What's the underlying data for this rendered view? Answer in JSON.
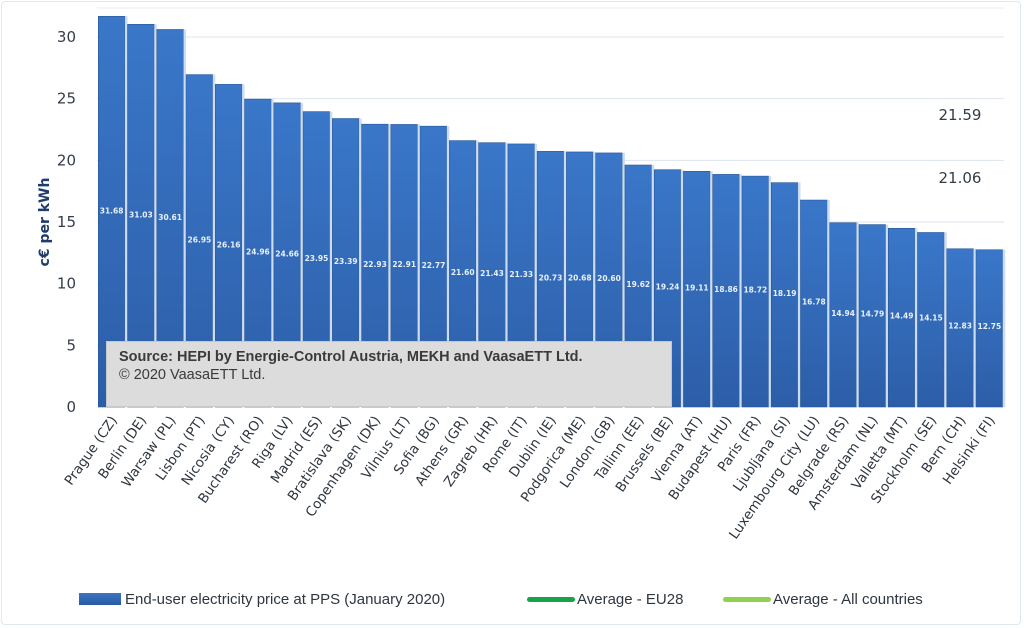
{
  "chart_data": {
    "type": "bar",
    "title": "",
    "xlabel": "",
    "ylabel": "c€ per kWh",
    "ylim": [
      0,
      30
    ],
    "yticks": [
      0,
      5,
      10,
      15,
      20,
      25,
      30
    ],
    "grid": true,
    "legend_position": "bottom",
    "categories": [
      "Prague (CZ)",
      "Berlin (DE)",
      "Warsaw (PL)",
      "Lisbon (PT)",
      "Nicosia (CY)",
      "Bucharest (RO)",
      "Riga (LV)",
      "Madrid (ES)",
      "Bratislava (SK)",
      "Copenhagen (DK)",
      "Vilnius (LT)",
      "Sofia (BG)",
      "Athens (GR)",
      "Zagreb (HR)",
      "Rome (IT)",
      "Dublin (IE)",
      "Podgorica (ME)",
      "London (GB)",
      "Tallinn (EE)",
      "Brussels (BE)",
      "Vienna (AT)",
      "Budapest (HU)",
      "Paris (FR)",
      "Ljubljana (SI)",
      "Luxembourg City (LU)",
      "Belgrade (RS)",
      "Amsterdam (NL)",
      "Valletta (MT)",
      "Stockholm (SE)",
      "Bern (CH)",
      "Helsinki (FI)"
    ],
    "series": [
      {
        "name": "End-user electricity price at PPS (January 2020)",
        "type": "bar",
        "color": "#3370c2",
        "values": [
          31.68,
          31.03,
          30.61,
          26.95,
          26.16,
          24.96,
          24.66,
          23.95,
          23.39,
          22.93,
          22.91,
          22.77,
          21.6,
          21.43,
          21.33,
          20.73,
          20.68,
          20.6,
          19.62,
          19.24,
          19.11,
          18.86,
          18.72,
          18.19,
          16.78,
          14.94,
          14.79,
          14.49,
          14.15,
          12.83,
          12.75
        ],
        "labels": [
          "31.68",
          "31.03",
          "30.61",
          "26.95",
          "26.16",
          "24.96",
          "24.66",
          "23.95",
          "23.39",
          "22.93",
          "22.91",
          "22.77",
          "21.60",
          "21.43",
          "21.33",
          "20.73",
          "20.68",
          "20.60",
          "19.62",
          "19.24",
          "19.11",
          "18.86",
          "18.72",
          "18.19",
          "16.78",
          "14.94",
          "14.79",
          "14.49",
          "14.15",
          "12.83",
          "12.75"
        ]
      },
      {
        "name": "Average - EU28",
        "type": "line",
        "color": "#17a34a",
        "value": 21.59,
        "label": "21.59"
      },
      {
        "name": "Average - All countries",
        "type": "line",
        "color": "#92d050",
        "value": 21.06,
        "label": "21.06"
      }
    ],
    "annotations": {
      "source": "Source: HEPI by Energie-Control Austria, MEKH and VaasaETT Ltd.",
      "copyright": "© 2020 VaasaETT Ltd."
    }
  }
}
